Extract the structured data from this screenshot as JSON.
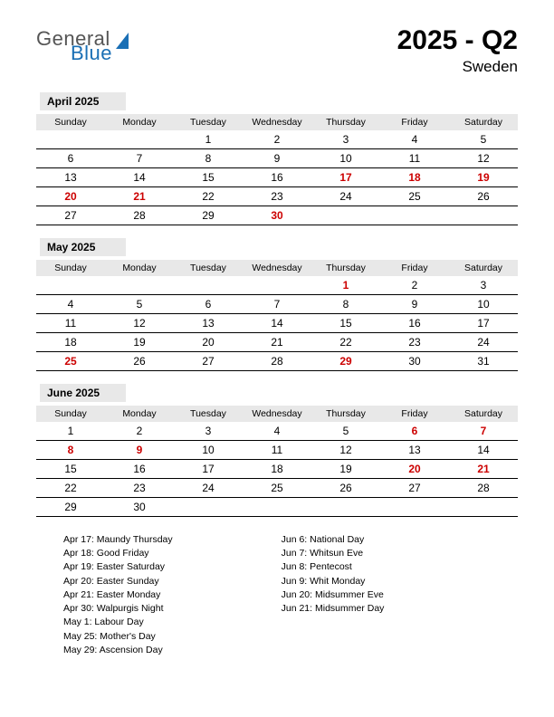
{
  "logo": {
    "text1": "General",
    "text2": "Blue"
  },
  "title": {
    "main": "2025 - Q2",
    "sub": "Sweden"
  },
  "weekdays": [
    "Sunday",
    "Monday",
    "Tuesday",
    "Wednesday",
    "Thursday",
    "Friday",
    "Saturday"
  ],
  "colors": {
    "holiday": "#cc0000",
    "header_bg": "#e8e8e8",
    "logo_blue": "#1a6fb5",
    "logo_gray": "#555555",
    "text": "#000000",
    "bg": "#ffffff"
  },
  "months": [
    {
      "label": "April 2025",
      "weeks": [
        [
          {
            "d": ""
          },
          {
            "d": ""
          },
          {
            "d": "1"
          },
          {
            "d": "2"
          },
          {
            "d": "3"
          },
          {
            "d": "4"
          },
          {
            "d": "5"
          }
        ],
        [
          {
            "d": "6"
          },
          {
            "d": "7"
          },
          {
            "d": "8"
          },
          {
            "d": "9"
          },
          {
            "d": "10"
          },
          {
            "d": "11"
          },
          {
            "d": "12"
          }
        ],
        [
          {
            "d": "13"
          },
          {
            "d": "14"
          },
          {
            "d": "15"
          },
          {
            "d": "16"
          },
          {
            "d": "17",
            "h": true
          },
          {
            "d": "18",
            "h": true
          },
          {
            "d": "19",
            "h": true
          }
        ],
        [
          {
            "d": "20",
            "h": true
          },
          {
            "d": "21",
            "h": true
          },
          {
            "d": "22"
          },
          {
            "d": "23"
          },
          {
            "d": "24"
          },
          {
            "d": "25"
          },
          {
            "d": "26"
          }
        ],
        [
          {
            "d": "27"
          },
          {
            "d": "28"
          },
          {
            "d": "29"
          },
          {
            "d": "30",
            "h": true
          },
          {
            "d": ""
          },
          {
            "d": ""
          },
          {
            "d": ""
          }
        ]
      ]
    },
    {
      "label": "May 2025",
      "weeks": [
        [
          {
            "d": ""
          },
          {
            "d": ""
          },
          {
            "d": ""
          },
          {
            "d": ""
          },
          {
            "d": "1",
            "h": true
          },
          {
            "d": "2"
          },
          {
            "d": "3"
          }
        ],
        [
          {
            "d": "4"
          },
          {
            "d": "5"
          },
          {
            "d": "6"
          },
          {
            "d": "7"
          },
          {
            "d": "8"
          },
          {
            "d": "9"
          },
          {
            "d": "10"
          }
        ],
        [
          {
            "d": "11"
          },
          {
            "d": "12"
          },
          {
            "d": "13"
          },
          {
            "d": "14"
          },
          {
            "d": "15"
          },
          {
            "d": "16"
          },
          {
            "d": "17"
          }
        ],
        [
          {
            "d": "18"
          },
          {
            "d": "19"
          },
          {
            "d": "20"
          },
          {
            "d": "21"
          },
          {
            "d": "22"
          },
          {
            "d": "23"
          },
          {
            "d": "24"
          }
        ],
        [
          {
            "d": "25",
            "h": true
          },
          {
            "d": "26"
          },
          {
            "d": "27"
          },
          {
            "d": "28"
          },
          {
            "d": "29",
            "h": true
          },
          {
            "d": "30"
          },
          {
            "d": "31"
          }
        ]
      ]
    },
    {
      "label": "June 2025",
      "weeks": [
        [
          {
            "d": "1"
          },
          {
            "d": "2"
          },
          {
            "d": "3"
          },
          {
            "d": "4"
          },
          {
            "d": "5"
          },
          {
            "d": "6",
            "h": true
          },
          {
            "d": "7",
            "h": true
          }
        ],
        [
          {
            "d": "8",
            "h": true
          },
          {
            "d": "9",
            "h": true
          },
          {
            "d": "10"
          },
          {
            "d": "11"
          },
          {
            "d": "12"
          },
          {
            "d": "13"
          },
          {
            "d": "14"
          }
        ],
        [
          {
            "d": "15"
          },
          {
            "d": "16"
          },
          {
            "d": "17"
          },
          {
            "d": "18"
          },
          {
            "d": "19"
          },
          {
            "d": "20",
            "h": true
          },
          {
            "d": "21",
            "h": true
          }
        ],
        [
          {
            "d": "22"
          },
          {
            "d": "23"
          },
          {
            "d": "24"
          },
          {
            "d": "25"
          },
          {
            "d": "26"
          },
          {
            "d": "27"
          },
          {
            "d": "28"
          }
        ],
        [
          {
            "d": "29"
          },
          {
            "d": "30"
          },
          {
            "d": ""
          },
          {
            "d": ""
          },
          {
            "d": ""
          },
          {
            "d": ""
          },
          {
            "d": ""
          }
        ]
      ]
    }
  ],
  "holidays_list": {
    "col1": [
      "Apr 17: Maundy Thursday",
      "Apr 18: Good Friday",
      "Apr 19: Easter Saturday",
      "Apr 20: Easter Sunday",
      "Apr 21: Easter Monday",
      "Apr 30: Walpurgis Night",
      "May 1: Labour Day",
      "May 25: Mother's Day",
      "May 29: Ascension Day"
    ],
    "col2": [
      "Jun 6: National Day",
      "Jun 7: Whitsun Eve",
      "Jun 8: Pentecost",
      "Jun 9: Whit Monday",
      "Jun 20: Midsummer Eve",
      "Jun 21: Midsummer Day"
    ]
  }
}
